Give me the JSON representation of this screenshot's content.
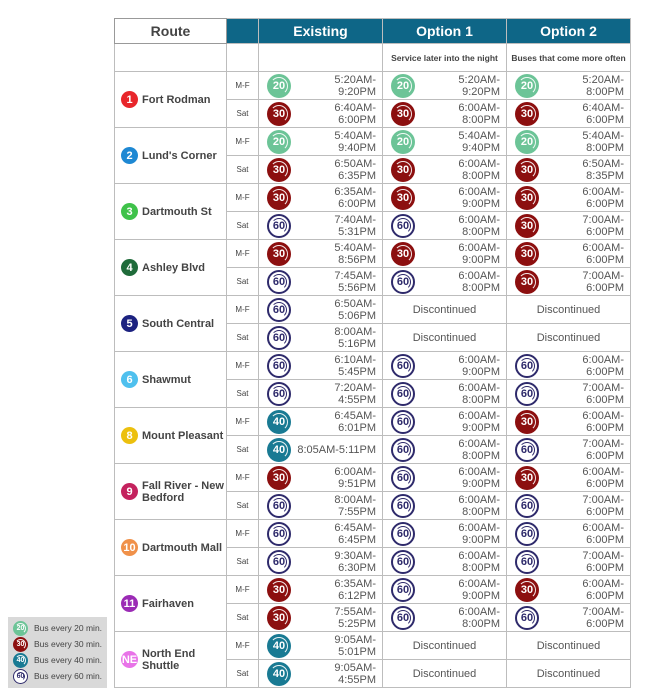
{
  "header": {
    "route": "Route",
    "existing": "Existing",
    "option1": "Option 1",
    "option2": "Option 2",
    "option1_sub": "Service later into the night",
    "option2_sub": "Buses that come more often"
  },
  "frequency_colors": {
    "20": "#6cc497",
    "30": "#8c0f0f",
    "40": "#197a93",
    "60": "#2e2a6b"
  },
  "discontinued_label": "Discontinued",
  "routes": [
    {
      "num": "1",
      "name": "Fort Rodman",
      "color": "#e8262b",
      "rows": [
        {
          "day": "M-F",
          "cells": [
            [
              "20",
              "5:20AM-9:20PM"
            ],
            [
              "20",
              "5:20AM-9:20PM"
            ],
            [
              "20",
              "5:20AM-8:00PM"
            ]
          ]
        },
        {
          "day": "Sat",
          "cells": [
            [
              "30",
              "6:40AM-6:00PM"
            ],
            [
              "30",
              "6:00AM-8:00PM"
            ],
            [
              "30",
              "6:40AM-6:00PM"
            ]
          ]
        }
      ]
    },
    {
      "num": "2",
      "name": "Lund's Corner",
      "color": "#1e88d3",
      "rows": [
        {
          "day": "M-F",
          "cells": [
            [
              "20",
              "5:40AM-9:40PM"
            ],
            [
              "20",
              "5:40AM-9:40PM"
            ],
            [
              "20",
              "5:40AM-8:00PM"
            ]
          ]
        },
        {
          "day": "Sat",
          "cells": [
            [
              "30",
              "6:50AM-6:35PM"
            ],
            [
              "30",
              "6:00AM-8:00PM"
            ],
            [
              "30",
              "6:50AM-8:35PM"
            ]
          ]
        }
      ]
    },
    {
      "num": "3",
      "name": "Dartmouth St",
      "color": "#3fc24a",
      "rows": [
        {
          "day": "M-F",
          "cells": [
            [
              "30",
              "6:35AM-6:00PM"
            ],
            [
              "30",
              "6:00AM-9:00PM"
            ],
            [
              "30",
              "6:00AM-6:00PM"
            ]
          ]
        },
        {
          "day": "Sat",
          "cells": [
            [
              "60",
              "7:40AM-5:31PM"
            ],
            [
              "60",
              "6:00AM-8:00PM"
            ],
            [
              "30",
              "7:00AM-6:00PM"
            ]
          ]
        }
      ]
    },
    {
      "num": "4",
      "name": "Ashley Blvd",
      "color": "#1f6b3a",
      "rows": [
        {
          "day": "M-F",
          "cells": [
            [
              "30",
              "5:40AM-8:56PM"
            ],
            [
              "30",
              "6:00AM-9:00PM"
            ],
            [
              "30",
              "6:00AM-6:00PM"
            ]
          ]
        },
        {
          "day": "Sat",
          "cells": [
            [
              "60",
              "7:45AM-5:56PM"
            ],
            [
              "60",
              "6:00AM-8:00PM"
            ],
            [
              "30",
              "7:00AM-6:00PM"
            ]
          ]
        }
      ]
    },
    {
      "num": "5",
      "name": "South Central",
      "color": "#1c2280",
      "rows": [
        {
          "day": "M-F",
          "cells": [
            [
              "60",
              "6:50AM-5:06PM"
            ],
            null,
            null
          ]
        },
        {
          "day": "Sat",
          "cells": [
            [
              "60",
              "8:00AM-5:16PM"
            ],
            null,
            null
          ]
        }
      ]
    },
    {
      "num": "6",
      "name": "Shawmut",
      "color": "#4fc0ee",
      "rows": [
        {
          "day": "M-F",
          "cells": [
            [
              "60",
              "6:10AM-5:45PM"
            ],
            [
              "60",
              "6:00AM-9:00PM"
            ],
            [
              "60",
              "6:00AM-6:00PM"
            ]
          ]
        },
        {
          "day": "Sat",
          "cells": [
            [
              "60",
              "7:20AM-4:55PM"
            ],
            [
              "60",
              "6:00AM-8:00PM"
            ],
            [
              "60",
              "7:00AM-6:00PM"
            ]
          ]
        }
      ]
    },
    {
      "num": "8",
      "name": "Mount Pleasant",
      "color": "#ecc00e",
      "rows": [
        {
          "day": "M-F",
          "cells": [
            [
              "40",
              "6:45AM-6:01PM"
            ],
            [
              "60",
              "6:00AM-9:00PM"
            ],
            [
              "30",
              "6:00AM-6:00PM"
            ]
          ]
        },
        {
          "day": "Sat",
          "cells": [
            [
              "40",
              "8:05AM-5:11PM"
            ],
            [
              "60",
              "6:00AM-8:00PM"
            ],
            [
              "60",
              "7:00AM-6:00PM"
            ]
          ]
        }
      ]
    },
    {
      "num": "9",
      "name": "Fall River - New Bedford",
      "color": "#c4225e",
      "rows": [
        {
          "day": "M-F",
          "cells": [
            [
              "30",
              "6:00AM-9:51PM"
            ],
            [
              "60",
              "6:00AM-9:00PM"
            ],
            [
              "30",
              "6:00AM-6:00PM"
            ]
          ]
        },
        {
          "day": "Sat",
          "cells": [
            [
              "60",
              "8:00AM-7:55PM"
            ],
            [
              "60",
              "6:00AM-8:00PM"
            ],
            [
              "60",
              "7:00AM-6:00PM"
            ]
          ]
        }
      ]
    },
    {
      "num": "10",
      "name": "Dartmouth Mall",
      "color": "#f0914a",
      "rows": [
        {
          "day": "M-F",
          "cells": [
            [
              "60",
              "6:45AM-6:45PM"
            ],
            [
              "60",
              "6:00AM-9:00PM"
            ],
            [
              "60",
              "6:00AM-6:00PM"
            ]
          ]
        },
        {
          "day": "Sat",
          "cells": [
            [
              "60",
              "9:30AM-6:30PM"
            ],
            [
              "60",
              "6:00AM-8:00PM"
            ],
            [
              "60",
              "7:00AM-6:00PM"
            ]
          ]
        }
      ]
    },
    {
      "num": "11",
      "name": "Fairhaven",
      "color": "#9b2bb5",
      "rows": [
        {
          "day": "M-F",
          "cells": [
            [
              "30",
              "6:35AM-6:12PM"
            ],
            [
              "60",
              "6:00AM-9:00PM"
            ],
            [
              "30",
              "6:00AM-6:00PM"
            ]
          ]
        },
        {
          "day": "Sat",
          "cells": [
            [
              "30",
              "7:55AM-5:25PM"
            ],
            [
              "60",
              "6:00AM-8:00PM"
            ],
            [
              "60",
              "7:00AM-6:00PM"
            ]
          ]
        }
      ]
    },
    {
      "num": "NE",
      "name": "North End Shuttle",
      "color": "#e873e8",
      "rows": [
        {
          "day": "M-F",
          "cells": [
            [
              "40",
              "9:05AM-5:01PM"
            ],
            null,
            null
          ]
        },
        {
          "day": "Sat",
          "cells": [
            [
              "40",
              "9:05AM-4:55PM"
            ],
            null,
            null
          ]
        }
      ]
    }
  ],
  "legend": [
    {
      "freq": "20",
      "label": "Bus every 20 min."
    },
    {
      "freq": "30",
      "label": "Bus every 30 min."
    },
    {
      "freq": "40",
      "label": "Bus every 40 min."
    },
    {
      "freq": "60",
      "label": "Bus every 60 min."
    }
  ]
}
